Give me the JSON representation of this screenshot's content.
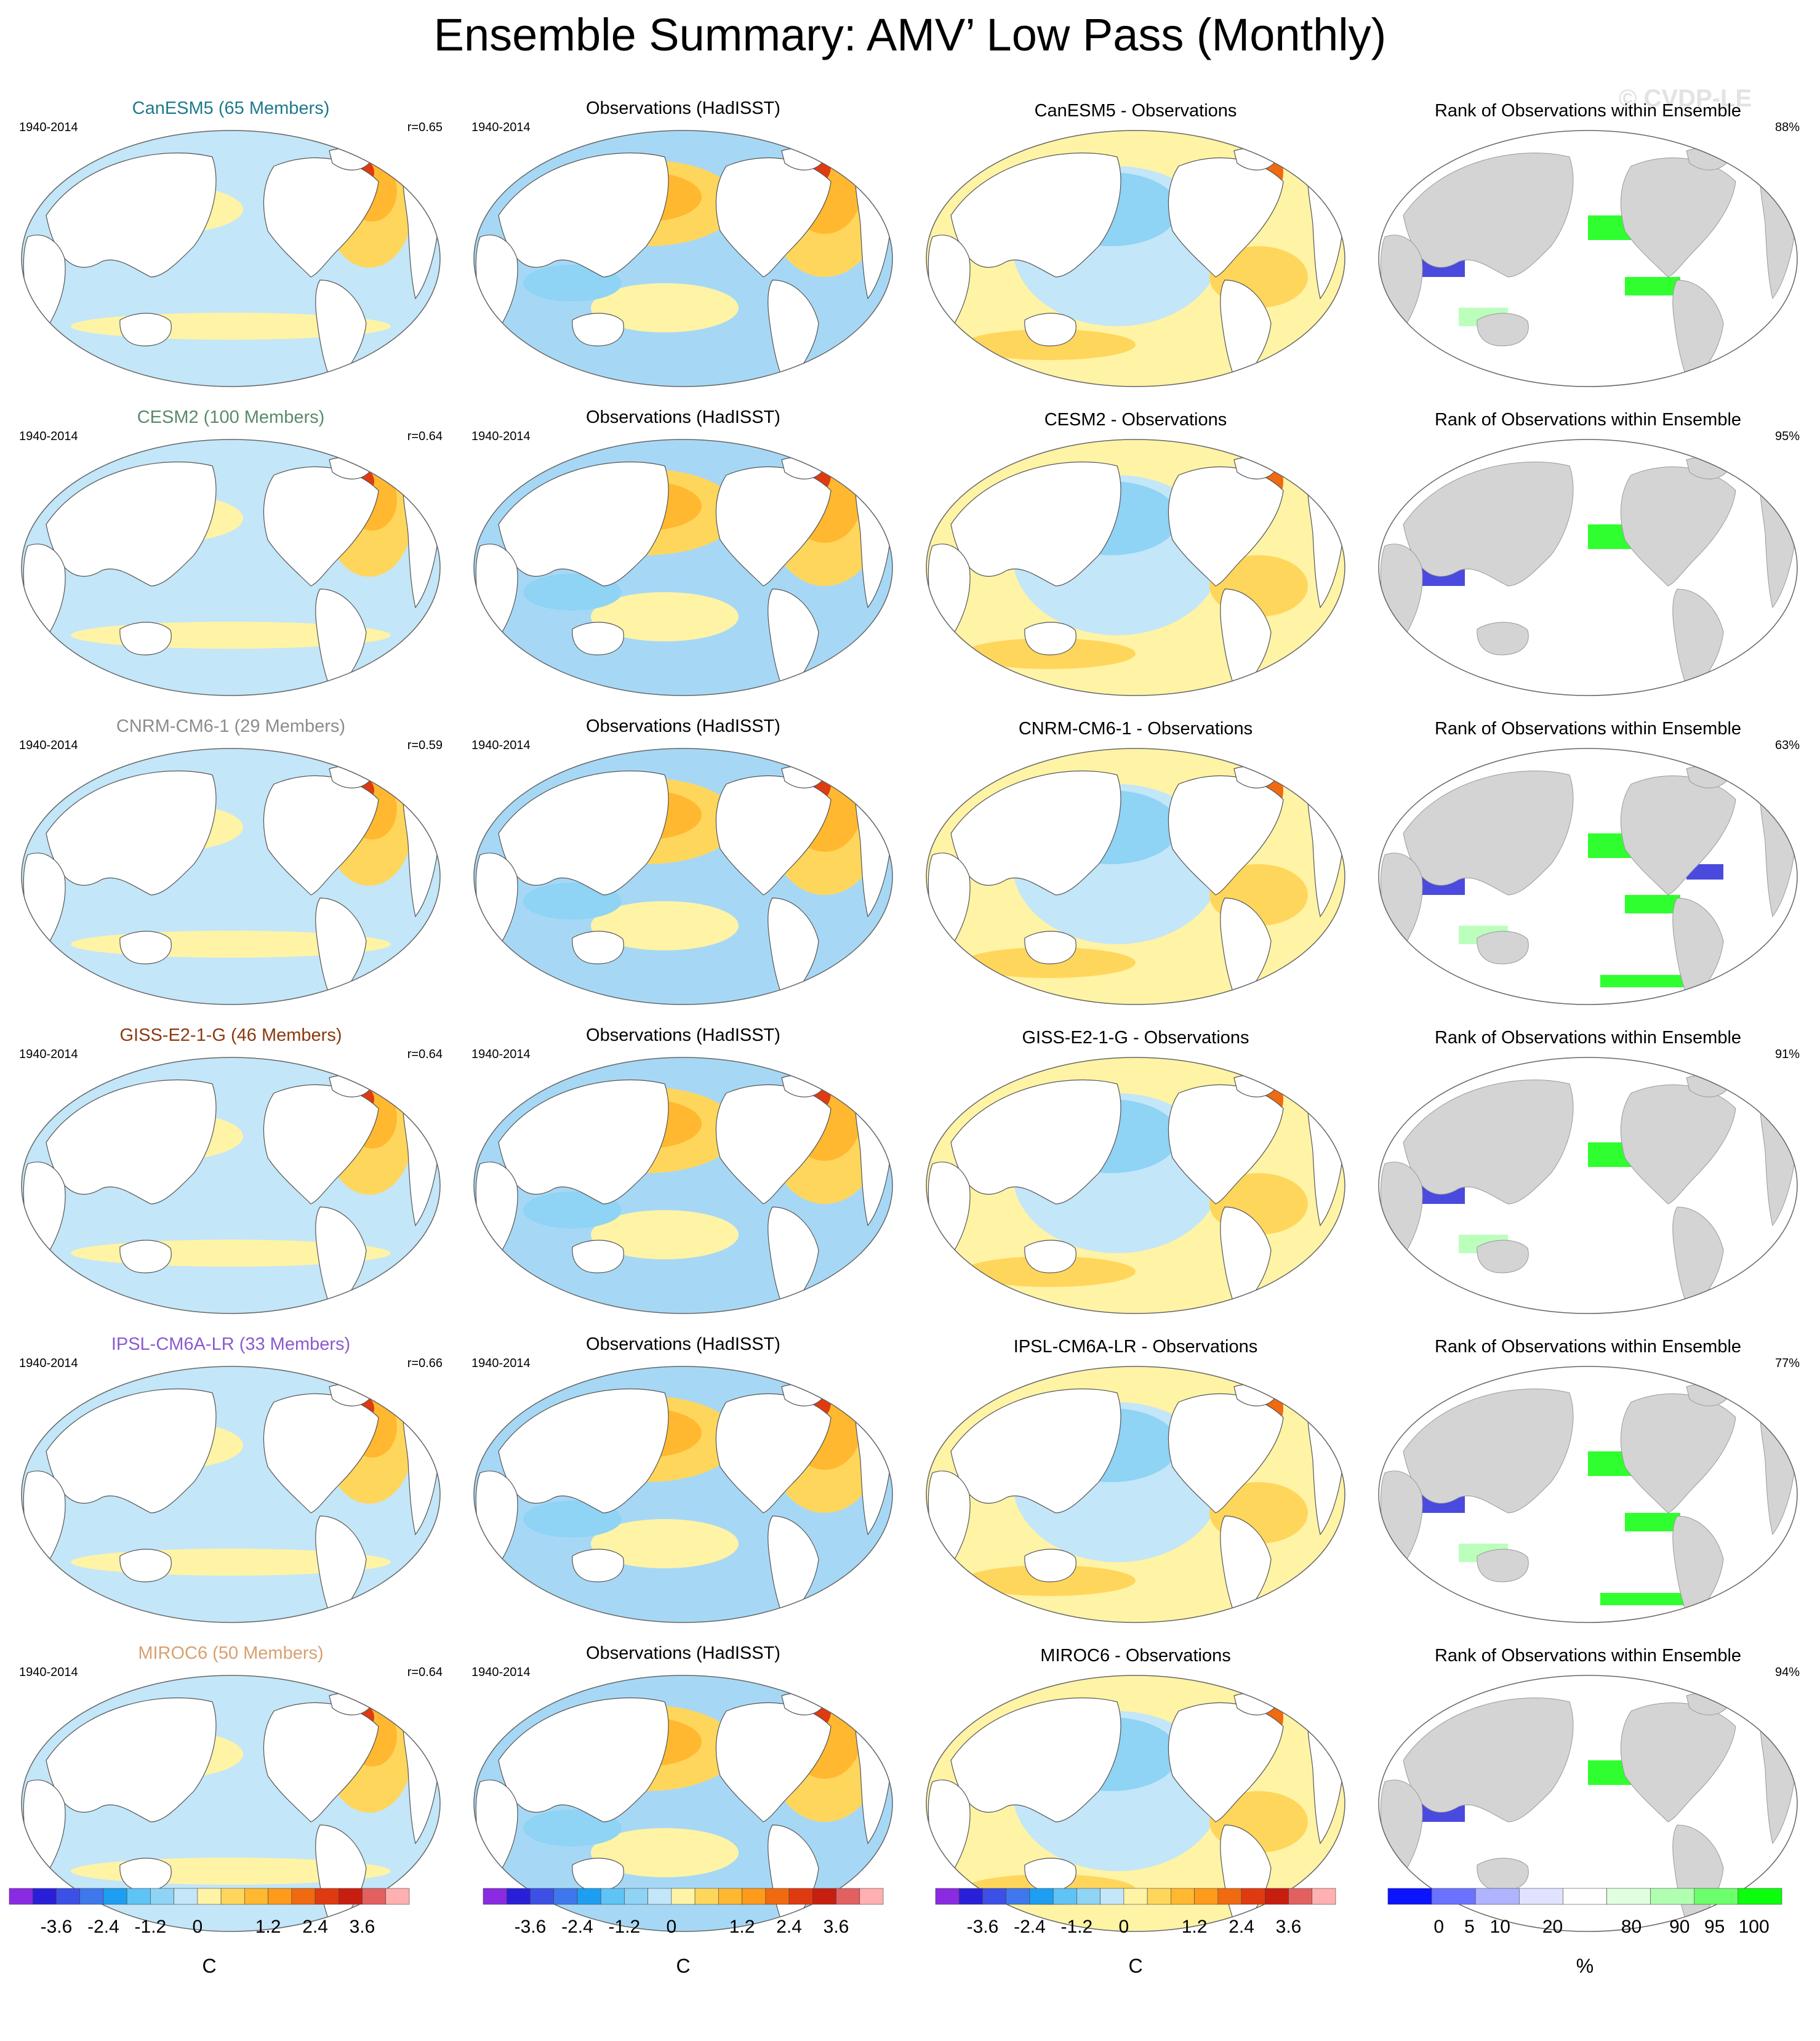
{
  "title": "Ensemble Summary: AMV’ Low Pass (Monthly)",
  "watermark": "© CVDP-LE",
  "period": "1940-2014",
  "rows": [
    {
      "model": "CanESM5",
      "member_label": "CanESM5 (65 Members)",
      "label_color": "#1e7a8c",
      "corr": "r=0.65",
      "obs_title": "Observations (HadISST)",
      "diff_title": "CanESM5 - Observations",
      "rank_title": "Rank of Observations within Ensemble",
      "rank_pct": "88%"
    },
    {
      "model": "CESM2",
      "member_label": "CESM2 (100 Members)",
      "label_color": "#5a8a6a",
      "corr": "r=0.64",
      "obs_title": "Observations (HadISST)",
      "diff_title": "CESM2 - Observations",
      "rank_title": "Rank of Observations within Ensemble",
      "rank_pct": "95%"
    },
    {
      "model": "CNRM-CM6-1",
      "member_label": "CNRM-CM6-1 (29 Members)",
      "label_color": "#8c8c8c",
      "corr": "r=0.59",
      "obs_title": "Observations (HadISST)",
      "diff_title": "CNRM-CM6-1 - Observations",
      "rank_title": "Rank of Observations within Ensemble",
      "rank_pct": "63%"
    },
    {
      "model": "GISS-E2-1-G",
      "member_label": "GISS-E2-1-G (46 Members)",
      "label_color": "#8b3a10",
      "corr": "r=0.64",
      "obs_title": "Observations (HadISST)",
      "diff_title": "GISS-E2-1-G - Observations",
      "rank_title": "Rank of Observations within Ensemble",
      "rank_pct": "91%"
    },
    {
      "model": "IPSL-CM6A-LR",
      "member_label": "IPSL-CM6A-LR (33 Members)",
      "label_color": "#8a5ad0",
      "corr": "r=0.66",
      "obs_title": "Observations (HadISST)",
      "diff_title": "IPSL-CM6A-LR - Observations",
      "rank_title": "Rank of Observations within Ensemble",
      "rank_pct": "77%"
    },
    {
      "model": "MIROC6",
      "member_label": "MIROC6 (50 Members)",
      "label_color": "#d8a070",
      "corr": "r=0.64",
      "obs_title": "Observations (HadISST)",
      "diff_title": "MIROC6 - Observations",
      "rank_title": "Rank of Observations within Ensemble",
      "rank_pct": "94%"
    }
  ],
  "colorbars": {
    "sst": {
      "colors": [
        "#8a2be2",
        "#2a1fd8",
        "#3c50e6",
        "#3e78ec",
        "#1e9ef0",
        "#5fc3f5",
        "#8fd3f5",
        "#c3e6f8",
        "#fff3a6",
        "#ffd65c",
        "#ffb830",
        "#ff9a1a",
        "#f06a10",
        "#e03a10",
        "#c81e10",
        "#e26060",
        "#ffb0b0"
      ],
      "ticks": [
        "-3.6",
        "-2.4",
        "-1.2",
        "0",
        "1.2",
        "2.4",
        "3.6"
      ],
      "units": "C"
    },
    "rank": {
      "colors": [
        "#0b13ff",
        "#6b72ff",
        "#b0b4ff",
        "#e0e2ff",
        "#ffffff",
        "#e0ffe0",
        "#b0ffb0",
        "#6bff6b",
        "#0bff0b"
      ],
      "ticks": [
        "0",
        "5",
        "10",
        "20",
        "80",
        "90",
        "95",
        "100"
      ],
      "units": "%"
    }
  },
  "colors": {
    "ocean_neutral": "#c3e6f8",
    "land_white": "#ffffff",
    "land_gray": "#d4d4d4",
    "coast": "#555555"
  }
}
